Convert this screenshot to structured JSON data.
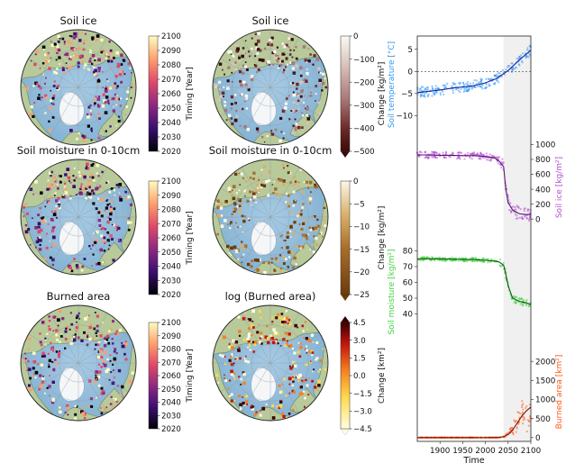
{
  "panels": [
    {
      "title": "Soil ice",
      "cbar": "timing",
      "label": "Timing [Year]",
      "ticks": [
        "2100",
        "2090",
        "2080",
        "2070",
        "2060",
        "2050",
        "2040",
        "2030",
        "2020"
      ]
    },
    {
      "title": "Soil ice",
      "cbar": "ice",
      "label": "Change [kg/m²]",
      "ticks": [
        "0",
        "−100",
        "−200",
        "−300",
        "−400",
        "−500"
      ]
    },
    {
      "title": "Soil moisture in 0-10cm",
      "cbar": "timing",
      "label": "Timing [Year]",
      "ticks": [
        "2100",
        "2090",
        "2080",
        "2070",
        "2060",
        "2050",
        "2040",
        "2030",
        "2020"
      ]
    },
    {
      "title": "Soil moisture in 0-10cm",
      "cbar": "moist",
      "label": "Change [kg/m²]",
      "ticks": [
        "0",
        "−5",
        "−10",
        "−15",
        "−20",
        "−25"
      ]
    },
    {
      "title": "Burned area",
      "cbar": "timing",
      "label": "Timing [Year]",
      "ticks": [
        "2100",
        "2090",
        "2080",
        "2070",
        "2060",
        "2050",
        "2040",
        "2030",
        "2020"
      ]
    },
    {
      "title": "log (Burned area)",
      "cbar": "burn",
      "label": "Change [km²]",
      "ticks": [
        "4.5",
        "3.0",
        "1.5",
        "0.0",
        "−1.5",
        "−3.0",
        "−4.5"
      ]
    }
  ],
  "chart_data": {
    "type": "line",
    "xlabel": "Time",
    "xlim": [
      1850,
      2100
    ],
    "x_ticks": [
      "1900",
      "1950",
      "2000",
      "2050",
      "2100"
    ],
    "shaded_span": [
      2040,
      2100
    ],
    "series": [
      {
        "name": "Soil temperature [°C]",
        "color": "#3399ee",
        "dark": "#1b1ba8",
        "ylim": [
          -14,
          8
        ],
        "ticks": [
          5,
          0,
          -5,
          -10
        ],
        "tick_labels": [
          "5",
          "0",
          "−5",
          "−10"
        ],
        "axis_side": "left",
        "zero_line": true,
        "x": [
          1850,
          1875,
          1900,
          1925,
          1950,
          1975,
          2000,
          2025,
          2050,
          2075,
          2100
        ],
        "values": [
          -4.8,
          -4.5,
          -4.2,
          -3.8,
          -3.5,
          -3.2,
          -2.6,
          -1.6,
          0.2,
          2.6,
          4.8
        ]
      },
      {
        "name": "Soil ice [kg/m²]",
        "color": "#b44fd2",
        "dark": "#5a1570",
        "ylim": [
          -300,
          1150
        ],
        "ticks": [
          1000,
          800,
          600,
          400,
          200,
          0
        ],
        "tick_labels": [
          "1000",
          "800",
          "600",
          "400",
          "200",
          "0"
        ],
        "axis_side": "right",
        "x": [
          1850,
          1875,
          1900,
          1925,
          1950,
          1975,
          2000,
          2020,
          2030,
          2040,
          2045,
          2050,
          2060,
          2075,
          2090,
          2100
        ],
        "values": [
          860,
          860,
          855,
          855,
          850,
          850,
          840,
          820,
          780,
          700,
          400,
          220,
          120,
          70,
          60,
          60
        ]
      },
      {
        "name": "Soil moisture [kg/m²]",
        "color": "#3fd43f",
        "dark": "#0f5a0f",
        "ylim": [
          22,
          86
        ],
        "ticks": [
          80,
          70,
          60,
          50,
          40
        ],
        "tick_labels": [
          "80",
          "70",
          "60",
          "50",
          "40"
        ],
        "axis_side": "left",
        "x": [
          1850,
          1875,
          1900,
          1925,
          1950,
          1975,
          2000,
          2020,
          2030,
          2040,
          2045,
          2050,
          2060,
          2075,
          2090,
          2100
        ],
        "values": [
          75,
          75,
          74.8,
          74.8,
          74.5,
          74.5,
          74,
          73.5,
          73,
          71,
          65,
          58,
          50,
          48,
          47,
          46
        ]
      },
      {
        "name": "Burned area [km²]",
        "color": "#ff5a1a",
        "dark": "#7a1500",
        "ylim": [
          -100,
          2500
        ],
        "ticks": [
          2000,
          1500,
          1000,
          500,
          0
        ],
        "tick_labels": [
          "2000",
          "1500",
          "1000",
          "500",
          "0"
        ],
        "axis_side": "right",
        "x": [
          1850,
          1900,
          1950,
          2000,
          2030,
          2040,
          2050,
          2060,
          2070,
          2080,
          2090,
          2100
        ],
        "values": [
          0,
          0,
          0,
          0,
          5,
          20,
          80,
          200,
          380,
          560,
          700,
          800
        ]
      }
    ]
  }
}
